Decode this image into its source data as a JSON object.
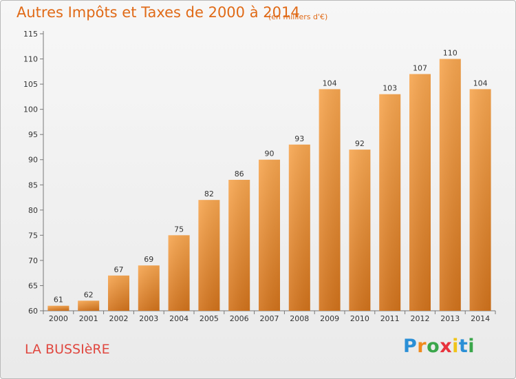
{
  "title": "Autres Impôts et Taxes de 2000 à 2014",
  "subtitle": "(en milliers d'€)",
  "commune": "LA BUSSIèRE",
  "brand": {
    "letters": [
      "P",
      "r",
      "o",
      "x",
      "i",
      "t",
      "i"
    ],
    "colors": [
      "#2a8fd6",
      "#f08a1c",
      "#3aa64a",
      "#e8323c",
      "#f0c419",
      "#2a8fd6",
      "#3aa64a"
    ]
  },
  "colors": {
    "bar_light": "#f7a650",
    "bar_dark": "#d2731c",
    "title": "#e06a17",
    "commune": "#e0473f"
  },
  "chart_data": {
    "type": "bar",
    "categories": [
      "2000",
      "2001",
      "2002",
      "2003",
      "2004",
      "2005",
      "2006",
      "2007",
      "2008",
      "2009",
      "2010",
      "2011",
      "2012",
      "2013",
      "2014"
    ],
    "values": [
      61,
      62,
      67,
      69,
      75,
      82,
      86,
      90,
      93,
      104,
      92,
      103,
      107,
      110,
      104
    ],
    "ylim": [
      60,
      115
    ],
    "yticks": [
      60,
      65,
      70,
      75,
      80,
      85,
      90,
      95,
      100,
      105,
      110,
      115
    ],
    "grid": false,
    "data_labels": true
  }
}
